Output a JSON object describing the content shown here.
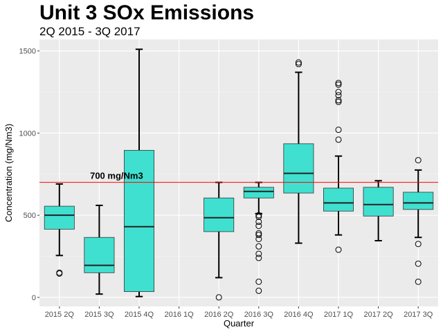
{
  "chart_data": {
    "type": "box",
    "title": "Unit 3 SOx Emissions",
    "subtitle": "2Q 2015 - 3Q 2017",
    "xlabel": "Quarter",
    "ylabel": "Concentration (mg/Nm3)",
    "ylim": [
      -55,
      1570
    ],
    "yticks": [
      0,
      500,
      1000,
      1500
    ],
    "grid": true,
    "colors": {
      "box_fill": "#40E0D0",
      "panel": "#EBEBEB",
      "reference_line": "#FF0000"
    },
    "reference_line": {
      "y": 700,
      "label": "700 mg/Nm3",
      "label_x_category": "2015 3Q"
    },
    "categories": [
      "2015 2Q",
      "2015 3Q",
      "2015 4Q",
      "2016 1Q",
      "2016 2Q",
      "2016 3Q",
      "2016 4Q",
      "2017 1Q",
      "2017 2Q",
      "2017 3Q"
    ],
    "boxes": [
      {
        "category": "2015 2Q",
        "lower": 255,
        "q1": 415,
        "median": 500,
        "q3": 555,
        "upper": 690,
        "outliers": [
          145,
          150
        ]
      },
      {
        "category": "2015 3Q",
        "lower": 20,
        "q1": 150,
        "median": 195,
        "q3": 365,
        "upper": 560,
        "outliers": []
      },
      {
        "category": "2015 4Q",
        "lower": 5,
        "q1": 35,
        "median": 430,
        "q3": 895,
        "upper": 1510,
        "outliers": []
      },
      {
        "category": "2016 1Q",
        "empty": true
      },
      {
        "category": "2016 2Q",
        "lower": 120,
        "q1": 400,
        "median": 485,
        "q3": 605,
        "upper": 700,
        "outliers": [
          0
        ]
      },
      {
        "category": "2016 3Q",
        "lower": 510,
        "q1": 605,
        "median": 645,
        "q3": 670,
        "upper": 700,
        "outliers": [
          500,
          490,
          460,
          435,
          390,
          380,
          355,
          310,
          265,
          240,
          95,
          40
        ]
      },
      {
        "category": "2016 4Q",
        "lower": 330,
        "q1": 635,
        "median": 755,
        "q3": 935,
        "upper": 1370,
        "outliers": [
          1430,
          1420
        ]
      },
      {
        "category": "2017 1Q",
        "lower": 380,
        "q1": 525,
        "median": 575,
        "q3": 665,
        "upper": 860,
        "outliers": [
          1305,
          1295,
          1250,
          1230,
          1200,
          1190,
          1020,
          960,
          290
        ]
      },
      {
        "category": "2017 2Q",
        "lower": 345,
        "q1": 495,
        "median": 565,
        "q3": 670,
        "upper": 710,
        "outliers": []
      },
      {
        "category": "2017 3Q",
        "lower": 365,
        "q1": 535,
        "median": 575,
        "q3": 640,
        "upper": 775,
        "outliers": [
          835,
          325,
          205,
          95
        ]
      }
    ]
  }
}
